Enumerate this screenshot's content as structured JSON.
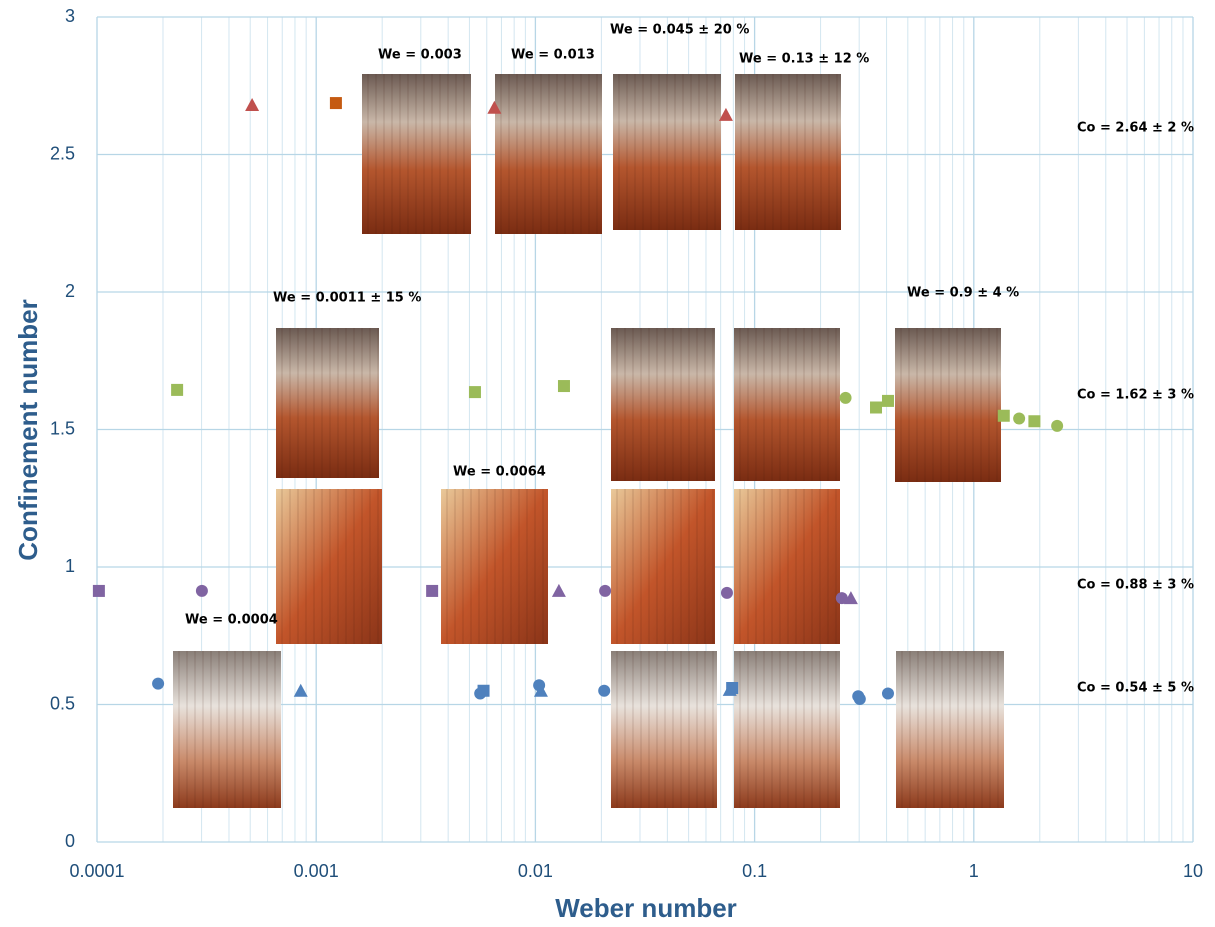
{
  "chart_data": {
    "type": "scatter",
    "x_label": "Weber number",
    "y_label": "Confinement number",
    "xscale": "log",
    "xlim": [
      0.0001,
      10
    ],
    "xticks": [
      0.0001,
      0.001,
      0.01,
      0.1,
      1,
      10
    ],
    "ylim": [
      0,
      3
    ],
    "yticks": [
      0,
      0.5,
      1,
      1.5,
      2,
      2.5,
      3
    ],
    "grid": true,
    "minor_grid": true,
    "series": [
      {
        "color": "#4f81bd",
        "marker": "circle",
        "x": [
          0.00019,
          0.0056,
          0.0104,
          0.0206,
          0.297,
          0.302,
          0.406
        ],
        "values": [
          0.576,
          0.54,
          0.57,
          0.55,
          0.53,
          0.52,
          0.54
        ]
      },
      {
        "color": "#4f81bd",
        "marker": "triangle",
        "x": [
          0.00085,
          0.0106,
          0.077
        ],
        "values": [
          0.55,
          0.55,
          0.553
        ]
      },
      {
        "color": "#4f81bd",
        "marker": "square",
        "x": [
          0.0058,
          0.079
        ],
        "values": [
          0.55,
          0.56
        ]
      },
      {
        "color": "#8064a2",
        "marker": "square",
        "x": [
          0.000102,
          0.00338
        ],
        "values": [
          0.913,
          0.913
        ]
      },
      {
        "color": "#8064a2",
        "marker": "circle",
        "x": [
          0.000301,
          0.0208,
          0.0748,
          0.25
        ],
        "values": [
          0.913,
          0.913,
          0.906,
          0.887
        ]
      },
      {
        "color": "#8064a2",
        "marker": "triangle",
        "x": [
          0.0128,
          0.275
        ],
        "values": [
          0.913,
          0.887
        ]
      },
      {
        "color": "#9bbb59",
        "marker": "square",
        "x": [
          0.000232,
          0.0053,
          0.0135,
          0.358,
          0.406,
          1.37,
          1.89
        ],
        "values": [
          1.644,
          1.636,
          1.658,
          1.58,
          1.604,
          1.55,
          1.53
        ]
      },
      {
        "color": "#9bbb59",
        "marker": "circle",
        "x": [
          0.26,
          1.61,
          2.4
        ],
        "values": [
          1.615,
          1.54,
          1.513
        ]
      },
      {
        "color": "#c0504d",
        "marker": "triangle",
        "x": [
          0.00051,
          0.0065,
          0.074
        ],
        "values": [
          2.68,
          2.67,
          2.644
        ]
      },
      {
        "color": "#c55a11",
        "marker": "square",
        "x": [
          0.00123
        ],
        "values": [
          2.687
        ]
      }
    ],
    "annotations": [
      "We = 0.003",
      "We = 0.013",
      "We = 0.045 ± 20 %",
      "We = 0.13 ± 12 %",
      "We = 0.0011 ± 15 %",
      "We = 0.9 ± 4 %",
      "We = 0.0064",
      "We = 0.0004",
      "Co = 2.64 ± 2 %",
      "Co = 1.62 ± 3 %",
      "Co = 0.88 ± 3 %",
      "Co = 0.54 ± 5 %"
    ]
  }
}
